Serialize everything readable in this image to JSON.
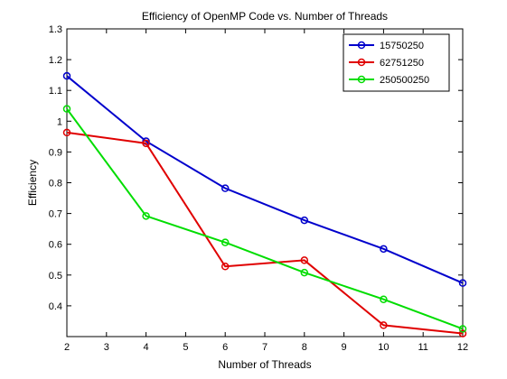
{
  "chart_data": {
    "type": "line",
    "title": "Efficiency of OpenMP Code vs. Number of Threads",
    "xlabel": "Number of Threads",
    "ylabel": "Efficiency",
    "xlim": [
      2,
      12
    ],
    "ylim": [
      0.3,
      1.3
    ],
    "xticks": [
      "2",
      "3",
      "4",
      "5",
      "6",
      "7",
      "8",
      "9",
      "10",
      "11",
      "12"
    ],
    "yticks": [
      "0.4",
      "0.5",
      "0.6",
      "0.7",
      "0.8",
      "0.9",
      "1",
      "1.1",
      "1.2",
      "1.3"
    ],
    "grid": false,
    "legend_position": "top-right",
    "x": [
      2,
      4,
      6,
      8,
      10,
      12
    ],
    "series": [
      {
        "name": "15750250",
        "color": "#0000cc",
        "marker": "circle",
        "values": [
          1.147,
          0.935,
          0.782,
          0.678,
          0.585,
          0.474
        ]
      },
      {
        "name": "62751250",
        "color": "#e00000",
        "marker": "circle",
        "values": [
          0.963,
          0.928,
          0.528,
          0.548,
          0.337,
          0.31
        ]
      },
      {
        "name": "250500250",
        "color": "#00dd00",
        "marker": "circle",
        "values": [
          1.04,
          0.692,
          0.606,
          0.508,
          0.421,
          0.325
        ]
      }
    ]
  }
}
